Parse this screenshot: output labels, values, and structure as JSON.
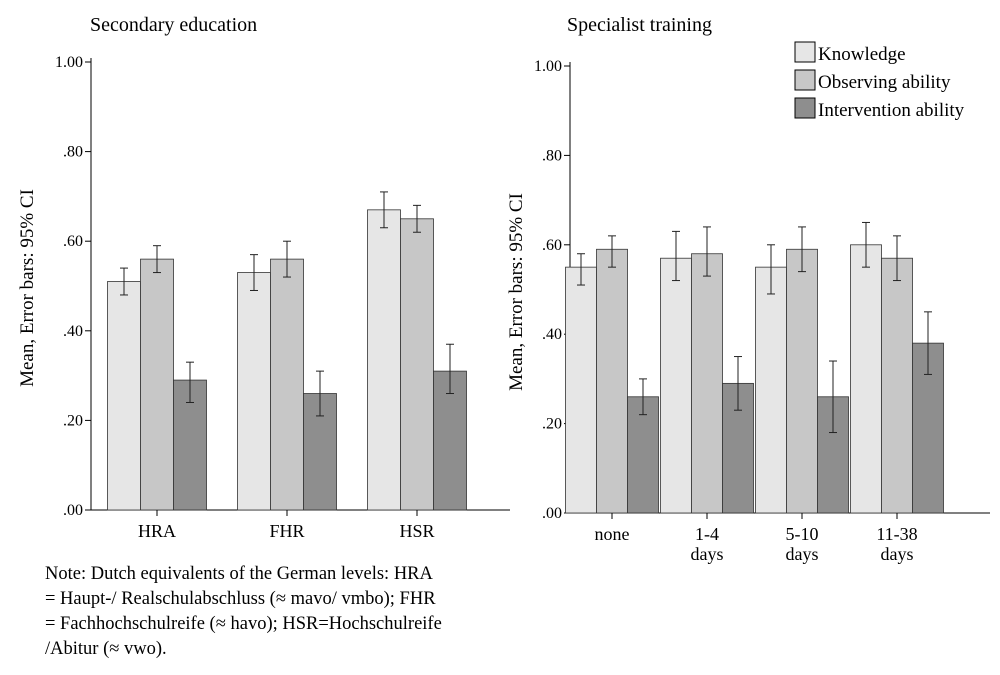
{
  "colors": {
    "knowledge": "#e6e6e6",
    "observing": "#c7c7c7",
    "intervention": "#8e8e8e",
    "axis": "#000000",
    "error_bar": "#222222"
  },
  "legend": {
    "placement": "top-right",
    "items": [
      "Knowledge",
      "Observing ability",
      "Intervention ability"
    ]
  },
  "note": "Note: Dutch equivalents of the German levels: HRA = Haupt-/ Realschulabschluss (≈ mavo/ vmbo); FHR = Fachhochschulreife (≈ havo); HSR=Hochschulreife /Abitur (≈ vwo).",
  "chart_data": [
    {
      "type": "bar",
      "title": "Secondary education",
      "ylabel": "Mean, Error bars: 95% CI",
      "xlabel": "",
      "ylim": [
        0,
        1.0
      ],
      "yticks": [
        ".00",
        ".20",
        ".40",
        ".60",
        ".80",
        "1.00"
      ],
      "ytick_values": [
        0,
        0.2,
        0.4,
        0.6,
        0.8,
        1.0
      ],
      "categories": [
        [
          "HRA"
        ],
        [
          "FHR"
        ],
        [
          "HSR"
        ]
      ],
      "series": [
        {
          "name": "Knowledge",
          "values": [
            0.51,
            0.53,
            0.67
          ],
          "ci_low": [
            0.48,
            0.49,
            0.63
          ],
          "ci_high": [
            0.54,
            0.57,
            0.71
          ]
        },
        {
          "name": "Observing ability",
          "values": [
            0.56,
            0.56,
            0.65
          ],
          "ci_low": [
            0.53,
            0.52,
            0.62
          ],
          "ci_high": [
            0.59,
            0.6,
            0.68
          ]
        },
        {
          "name": "Intervention ability",
          "values": [
            0.29,
            0.26,
            0.31
          ],
          "ci_low": [
            0.24,
            0.21,
            0.26
          ],
          "ci_high": [
            0.33,
            0.31,
            0.37
          ]
        }
      ]
    },
    {
      "type": "bar",
      "title": "Specialist training",
      "ylabel": "Mean, Error bars: 95% CI",
      "xlabel": "",
      "ylim": [
        0,
        1.0
      ],
      "yticks": [
        ".00",
        ".20",
        ".40",
        ".60",
        ".80",
        "1.00"
      ],
      "ytick_values": [
        0,
        0.2,
        0.4,
        0.6,
        0.8,
        1.0
      ],
      "categories": [
        [
          "none"
        ],
        [
          "1-4",
          "days"
        ],
        [
          "5-10",
          "days"
        ],
        [
          "11-38",
          "days"
        ]
      ],
      "series": [
        {
          "name": "Knowledge",
          "values": [
            0.55,
            0.57,
            0.55,
            0.6
          ],
          "ci_low": [
            0.51,
            0.52,
            0.49,
            0.55
          ],
          "ci_high": [
            0.58,
            0.63,
            0.6,
            0.65
          ]
        },
        {
          "name": "Observing ability",
          "values": [
            0.59,
            0.58,
            0.59,
            0.57
          ],
          "ci_low": [
            0.55,
            0.53,
            0.54,
            0.52
          ],
          "ci_high": [
            0.62,
            0.64,
            0.64,
            0.62
          ]
        },
        {
          "name": "Intervention ability",
          "values": [
            0.26,
            0.29,
            0.26,
            0.38
          ],
          "ci_low": [
            0.22,
            0.23,
            0.18,
            0.31
          ],
          "ci_high": [
            0.3,
            0.35,
            0.34,
            0.45
          ]
        }
      ]
    }
  ]
}
